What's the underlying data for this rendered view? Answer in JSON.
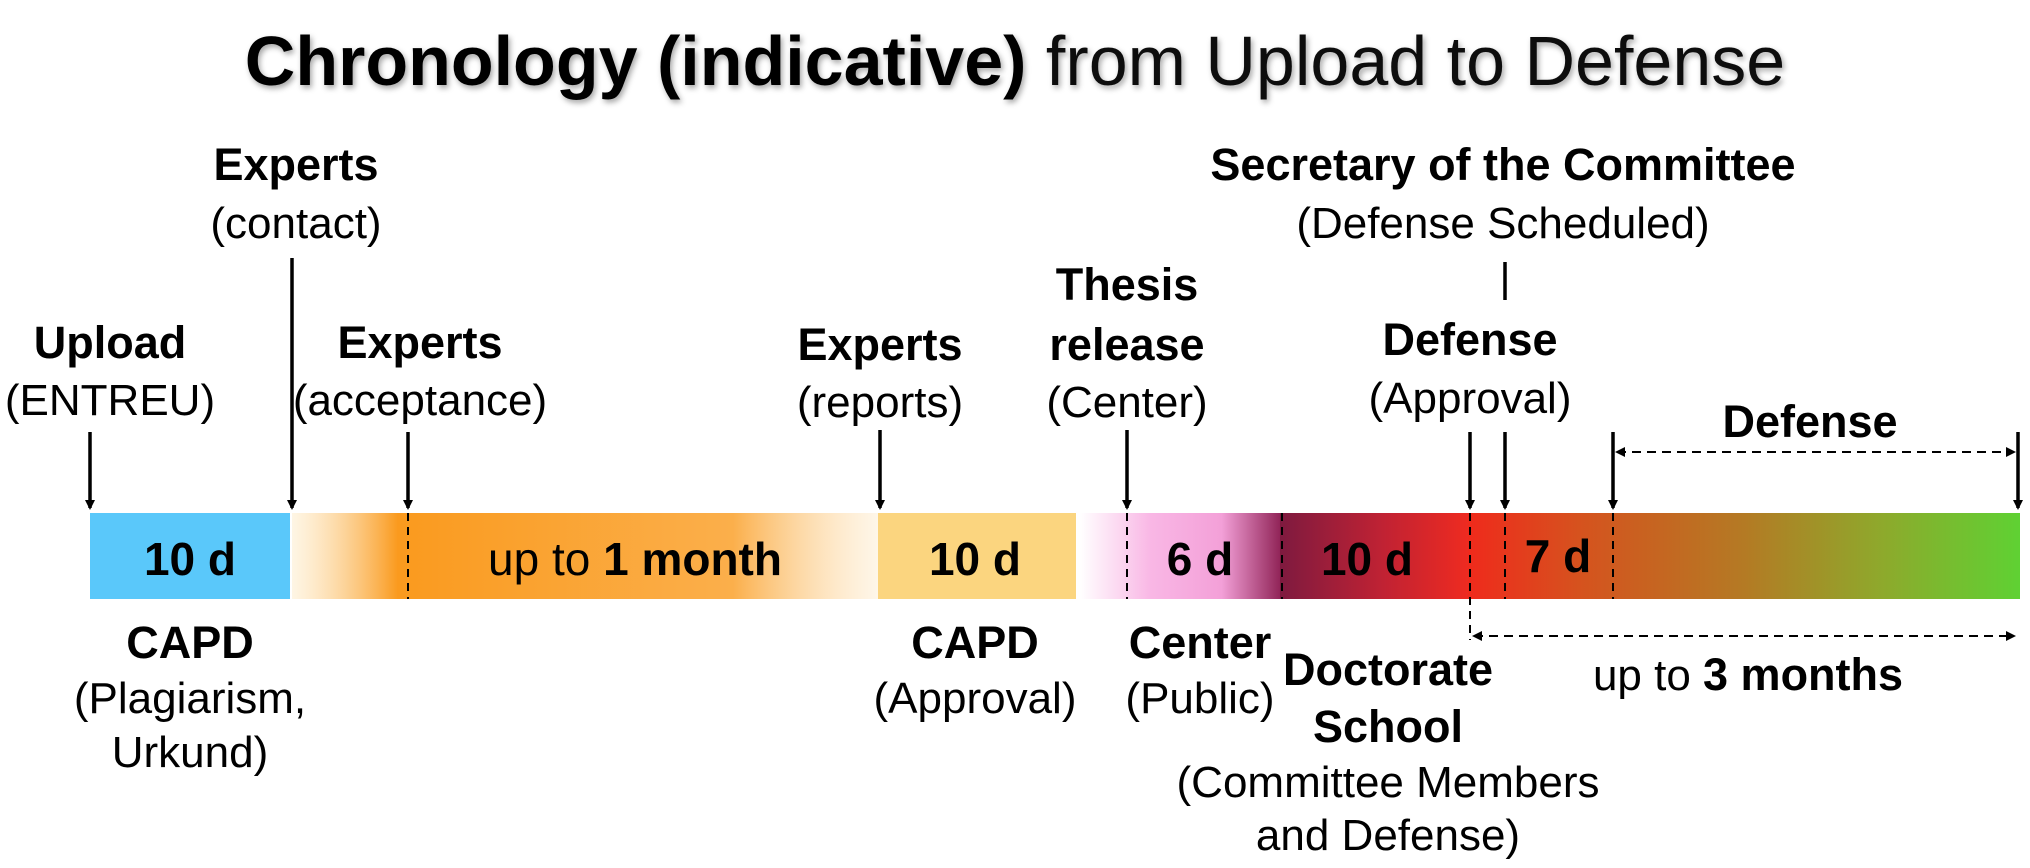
{
  "title": {
    "bold": "Chronology (indicative)",
    "rest": " from Upload to Defense"
  },
  "milestones": {
    "upload": {
      "title": "Upload",
      "sub": "(ENTREU)"
    },
    "experts_contact": {
      "title": "Experts",
      "sub": "(contact)"
    },
    "experts_acceptance": {
      "title": "Experts",
      "sub": "(acceptance)"
    },
    "experts_reports": {
      "title": "Experts",
      "sub": "(reports)"
    },
    "thesis_release": {
      "title1": "Thesis",
      "title2": "release",
      "sub": "(Center)"
    },
    "secretary": {
      "title": "Secretary of the Committee",
      "sub": "(Defense Scheduled)"
    },
    "defense_approval": {
      "title": "Defense",
      "sub": "(Approval)"
    },
    "defense": {
      "title": "Defense"
    }
  },
  "segments": {
    "capd1": {
      "label": "10 d",
      "actor": "CAPD",
      "sub1": "(Plagiarism,",
      "sub2": "Urkund)"
    },
    "month": {
      "pre": "up to ",
      "bold": "1 month"
    },
    "capd2": {
      "label": "10 d",
      "actor": "CAPD",
      "sub": "(Approval)"
    },
    "center": {
      "label": "6 d",
      "actor": "Center",
      "sub": "(Public)"
    },
    "doctorate": {
      "label": "10 d",
      "actor1": "Doctorate",
      "actor2": "School",
      "sub1": "(Committee Members",
      "sub2": "and Defense)"
    },
    "final": {
      "label": "7 d"
    }
  },
  "range": {
    "pre": "up to ",
    "bold": "3 months"
  },
  "colors": {
    "capd1": "#5ac8fa",
    "orange": "#fa9a1e",
    "capd2": "#fbd57f",
    "pink": "#f7a0dc",
    "maroon": "#8b1a3e",
    "red": "#ee2e1e",
    "green": "#60d037"
  }
}
